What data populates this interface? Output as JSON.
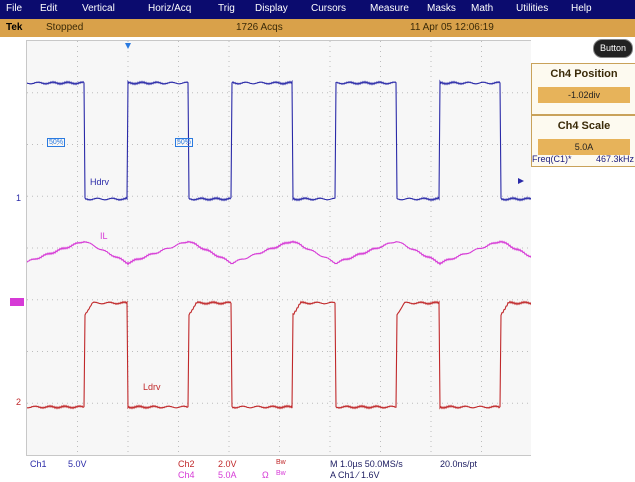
{
  "menu": [
    {
      "label": "File",
      "u": "F"
    },
    {
      "label": "Edit",
      "u": "E"
    },
    {
      "label": "Vertical",
      "u": "V"
    },
    {
      "label": "Horiz/Acq",
      "u": "o"
    },
    {
      "label": "Trig",
      "u": "T"
    },
    {
      "label": "Display",
      "u": "D"
    },
    {
      "label": "Cursors",
      "u": "C"
    },
    {
      "label": "Measure",
      "u": "u"
    },
    {
      "label": "Masks",
      "u": "a"
    },
    {
      "label": "Math",
      "u": "M"
    },
    {
      "label": "Utilities",
      "u": "U"
    },
    {
      "label": "Help",
      "u": "H"
    }
  ],
  "status": {
    "brand": "Tek",
    "state": "Stopped",
    "acqs": "1726 Acqs",
    "datetime": "11 Apr 05 12:06:19"
  },
  "button_label": "Button",
  "readouts": [
    {
      "title": "Ch4 Position",
      "value": "-1.02div"
    },
    {
      "title": "Ch4 Scale",
      "value": "5.0A"
    }
  ],
  "measurement": {
    "label": "Freq(C1)*",
    "value": "467.3kHz"
  },
  "trace_labels": {
    "hdrv": "Hdrv",
    "il": "IL",
    "ldrv": "Ldrv",
    "ch1_marker": "1",
    "ch2_marker": "2",
    "cursor_a": "50%",
    "cursor_b": "50%"
  },
  "bottom": {
    "ch1": "Ch1",
    "ch1_scale": "5.0V",
    "ch2": "Ch2",
    "ch2_scale": "2.0V",
    "ch2_bw": "Bw",
    "ch4": "Ch4",
    "ch4_scale": "5.0A",
    "ch4_ohm": "Ω",
    "ch4_bw": "Bw",
    "timebase": "M 1.0µs 50.0MS/s",
    "sample": "20.0ns/pt",
    "trigger": "A Ch1 ⁄ 1.6V"
  },
  "colors": {
    "ch1": "#2a2aa8",
    "ch2": "#c0282a",
    "ch4": "#d63ad6",
    "accent": "#d9a14a"
  }
}
